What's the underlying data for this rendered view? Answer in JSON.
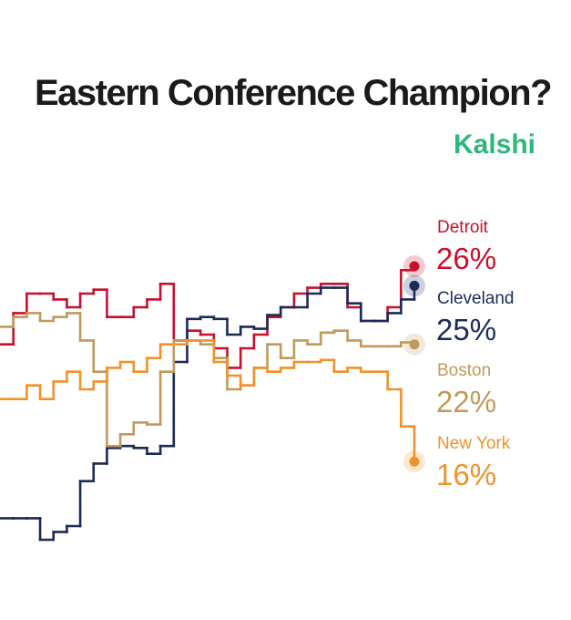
{
  "chart_data": {
    "type": "line",
    "step": "after",
    "title": "Eastern Conference Champion?",
    "source": "Kalshi",
    "series": [
      {
        "name": "Detroit",
        "color": "#c8102e",
        "values": [
          22.0,
          23.6,
          24.6,
          24.6,
          24.3,
          23.9,
          24.6,
          24.8,
          23.4,
          23.4,
          23.9,
          24.3,
          25.1,
          22.2,
          22.7,
          22.5,
          21.8,
          20.8,
          21.8,
          22.5,
          23.4,
          23.9,
          24.6,
          24.9,
          25.1,
          25.1,
          23.9,
          23.2,
          23.2,
          23.9,
          25.8,
          26
        ],
        "value_labels": {
          "31": "26%"
        }
      },
      {
        "name": "Cleveland",
        "color": "#1b2b57",
        "values": [
          13.1,
          13.1,
          13.1,
          12.0,
          12.4,
          12.7,
          15.0,
          15.9,
          16.7,
          16.8,
          16.7,
          16.4,
          16.8,
          21.1,
          23.3,
          23.4,
          23.3,
          22.5,
          22.9,
          22.8,
          23.5,
          23.9,
          23.9,
          24.6,
          24.9,
          24.9,
          24.1,
          23.2,
          23.2,
          23.6,
          24.3,
          25
        ],
        "value_labels": {
          "31": "25%"
        }
      },
      {
        "name": "Boston",
        "color": "#c09a5b",
        "values": [
          22.9,
          23.4,
          23.6,
          23.2,
          23.4,
          23.6,
          22.2,
          20.6,
          16.8,
          17.4,
          18.0,
          17.9,
          20.6,
          22.2,
          22.2,
          22.0,
          21.3,
          19.7,
          19.9,
          20.8,
          22.0,
          21.3,
          22.2,
          22.0,
          22.6,
          22.7,
          22.2,
          21.9,
          21.9,
          21.9,
          22.1,
          22
        ],
        "value_labels": {
          "31": "22%"
        }
      },
      {
        "name": "New York",
        "color": "#f0922b",
        "values": [
          19.2,
          19.2,
          19.9,
          19.2,
          20.1,
          20.6,
          19.7,
          20.1,
          20.8,
          21.1,
          20.6,
          21.3,
          22.0,
          22.0,
          22.2,
          22.2,
          21.1,
          20.4,
          19.9,
          20.8,
          20.6,
          20.8,
          21.1,
          21.1,
          21.2,
          20.6,
          20.8,
          20.6,
          20.6,
          19.7,
          17.8,
          16
        ],
        "value_labels": {
          "31": "16%"
        }
      }
    ]
  }
}
